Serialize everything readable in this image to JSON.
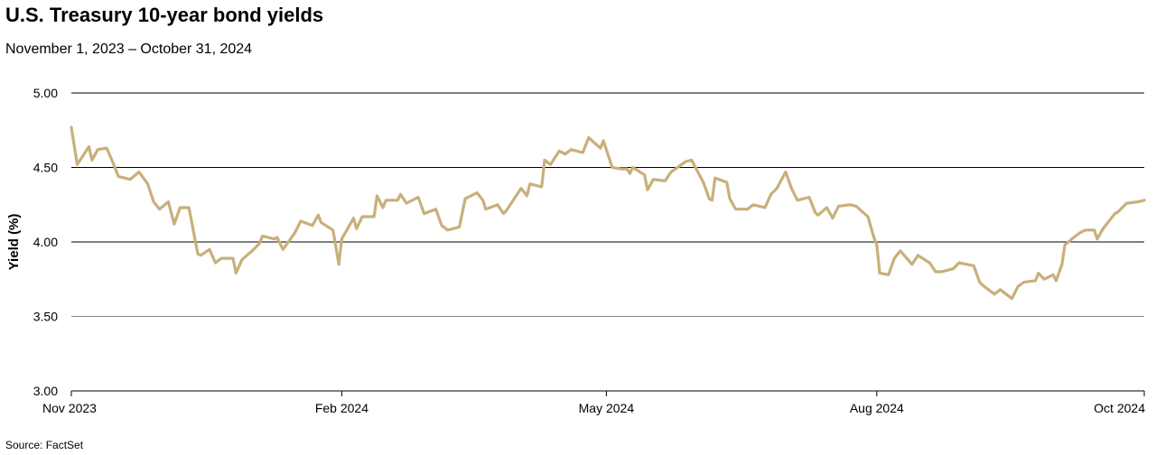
{
  "title": "U.S. Treasury 10-year bond yields",
  "subtitle": "November 1, 2023 – October 31, 2024",
  "source": "Source: FactSet",
  "colors": {
    "line": "#c8b07a",
    "grid": "#000000",
    "grid_light": "#8a8a8a"
  },
  "chart_data": {
    "type": "line",
    "ylabel": "Yield (%)",
    "xlabel": "",
    "ylim": [
      3.0,
      5.0
    ],
    "yticks": [
      "5.00",
      "4.50",
      "4.00",
      "3.50",
      "3.00"
    ],
    "xticks": [
      {
        "label": "Nov 2023",
        "date": "2023-11-01"
      },
      {
        "label": "Feb 2024",
        "date": "2024-02-01"
      },
      {
        "label": "May 2024",
        "date": "2024-05-01"
      },
      {
        "label": "Aug 2024",
        "date": "2024-08-01"
      },
      {
        "label": "Oct 2024",
        "date": "2024-10-31"
      }
    ],
    "xlim": [
      "2023-11-01",
      "2024-10-31"
    ],
    "series": [
      {
        "values": [
          [
            "2023-11-01",
            4.77
          ],
          [
            "2023-11-03",
            4.52
          ],
          [
            "2023-11-07",
            4.64
          ],
          [
            "2023-11-08",
            4.55
          ],
          [
            "2023-11-10",
            4.62
          ],
          [
            "2023-11-13",
            4.63
          ],
          [
            "2023-11-15",
            4.54
          ],
          [
            "2023-11-17",
            4.44
          ],
          [
            "2023-11-21",
            4.42
          ],
          [
            "2023-11-24",
            4.47
          ],
          [
            "2023-11-27",
            4.39
          ],
          [
            "2023-11-29",
            4.27
          ],
          [
            "2023-12-01",
            4.22
          ],
          [
            "2023-12-04",
            4.27
          ],
          [
            "2023-12-06",
            4.12
          ],
          [
            "2023-12-08",
            4.23
          ],
          [
            "2023-12-11",
            4.23
          ],
          [
            "2023-12-14",
            3.92
          ],
          [
            "2023-12-15",
            3.91
          ],
          [
            "2023-12-18",
            3.95
          ],
          [
            "2023-12-20",
            3.86
          ],
          [
            "2023-12-22",
            3.89
          ],
          [
            "2023-12-26",
            3.89
          ],
          [
            "2023-12-27",
            3.79
          ],
          [
            "2023-12-29",
            3.88
          ],
          [
            "2024-01-02",
            3.95
          ],
          [
            "2024-01-04",
            3.99
          ],
          [
            "2024-01-05",
            4.04
          ],
          [
            "2024-01-09",
            4.02
          ],
          [
            "2024-01-10",
            4.03
          ],
          [
            "2024-01-12",
            3.95
          ],
          [
            "2024-01-16",
            4.06
          ],
          [
            "2024-01-18",
            4.14
          ],
          [
            "2024-01-22",
            4.11
          ],
          [
            "2024-01-24",
            4.18
          ],
          [
            "2024-01-25",
            4.13
          ],
          [
            "2024-01-29",
            4.08
          ],
          [
            "2024-01-31",
            3.85
          ],
          [
            "2024-02-01",
            4.02
          ],
          [
            "2024-02-05",
            4.16
          ],
          [
            "2024-02-06",
            4.09
          ],
          [
            "2024-02-08",
            4.17
          ],
          [
            "2024-02-12",
            4.17
          ],
          [
            "2024-02-13",
            4.31
          ],
          [
            "2024-02-15",
            4.23
          ],
          [
            "2024-02-16",
            4.28
          ],
          [
            "2024-02-20",
            4.28
          ],
          [
            "2024-02-21",
            4.32
          ],
          [
            "2024-02-23",
            4.26
          ],
          [
            "2024-02-27",
            4.3
          ],
          [
            "2024-02-29",
            4.19
          ],
          [
            "2024-03-04",
            4.22
          ],
          [
            "2024-03-06",
            4.11
          ],
          [
            "2024-03-08",
            4.08
          ],
          [
            "2024-03-12",
            4.1
          ],
          [
            "2024-03-14",
            4.29
          ],
          [
            "2024-03-18",
            4.33
          ],
          [
            "2024-03-20",
            4.28
          ],
          [
            "2024-03-21",
            4.22
          ],
          [
            "2024-03-25",
            4.25
          ],
          [
            "2024-03-27",
            4.19
          ],
          [
            "2024-03-28",
            4.21
          ],
          [
            "2024-04-02",
            4.36
          ],
          [
            "2024-04-04",
            4.31
          ],
          [
            "2024-04-05",
            4.39
          ],
          [
            "2024-04-09",
            4.37
          ],
          [
            "2024-04-10",
            4.55
          ],
          [
            "2024-04-12",
            4.52
          ],
          [
            "2024-04-15",
            4.61
          ],
          [
            "2024-04-17",
            4.59
          ],
          [
            "2024-04-19",
            4.62
          ],
          [
            "2024-04-23",
            4.6
          ],
          [
            "2024-04-25",
            4.7
          ],
          [
            "2024-04-29",
            4.63
          ],
          [
            "2024-04-30",
            4.68
          ],
          [
            "2024-05-03",
            4.5
          ],
          [
            "2024-05-06",
            4.49
          ],
          [
            "2024-05-08",
            4.49
          ],
          [
            "2024-05-09",
            4.46
          ],
          [
            "2024-05-10",
            4.5
          ],
          [
            "2024-05-14",
            4.45
          ],
          [
            "2024-05-15",
            4.35
          ],
          [
            "2024-05-17",
            4.42
          ],
          [
            "2024-05-21",
            4.41
          ],
          [
            "2024-05-23",
            4.47
          ],
          [
            "2024-05-28",
            4.54
          ],
          [
            "2024-05-30",
            4.55
          ],
          [
            "2024-06-03",
            4.4
          ],
          [
            "2024-06-05",
            4.29
          ],
          [
            "2024-06-06",
            4.28
          ],
          [
            "2024-06-07",
            4.43
          ],
          [
            "2024-06-11",
            4.4
          ],
          [
            "2024-06-12",
            4.29
          ],
          [
            "2024-06-14",
            4.22
          ],
          [
            "2024-06-18",
            4.22
          ],
          [
            "2024-06-20",
            4.25
          ],
          [
            "2024-06-24",
            4.23
          ],
          [
            "2024-06-26",
            4.32
          ],
          [
            "2024-06-28",
            4.36
          ],
          [
            "2024-07-01",
            4.47
          ],
          [
            "2024-07-03",
            4.36
          ],
          [
            "2024-07-05",
            4.28
          ],
          [
            "2024-07-09",
            4.3
          ],
          [
            "2024-07-11",
            4.2
          ],
          [
            "2024-07-12",
            4.18
          ],
          [
            "2024-07-15",
            4.23
          ],
          [
            "2024-07-17",
            4.16
          ],
          [
            "2024-07-19",
            4.24
          ],
          [
            "2024-07-23",
            4.25
          ],
          [
            "2024-07-25",
            4.24
          ],
          [
            "2024-07-29",
            4.17
          ],
          [
            "2024-07-31",
            4.03
          ],
          [
            "2024-08-01",
            3.98
          ],
          [
            "2024-08-02",
            3.79
          ],
          [
            "2024-08-05",
            3.78
          ],
          [
            "2024-08-07",
            3.89
          ],
          [
            "2024-08-09",
            3.94
          ],
          [
            "2024-08-13",
            3.85
          ],
          [
            "2024-08-15",
            3.91
          ],
          [
            "2024-08-19",
            3.86
          ],
          [
            "2024-08-21",
            3.8
          ],
          [
            "2024-08-23",
            3.8
          ],
          [
            "2024-08-27",
            3.82
          ],
          [
            "2024-08-29",
            3.86
          ],
          [
            "2024-09-03",
            3.84
          ],
          [
            "2024-09-05",
            3.73
          ],
          [
            "2024-09-06",
            3.71
          ],
          [
            "2024-09-10",
            3.65
          ],
          [
            "2024-09-12",
            3.68
          ],
          [
            "2024-09-16",
            3.62
          ],
          [
            "2024-09-18",
            3.7
          ],
          [
            "2024-09-20",
            3.73
          ],
          [
            "2024-09-24",
            3.74
          ],
          [
            "2024-09-25",
            3.79
          ],
          [
            "2024-09-27",
            3.75
          ],
          [
            "2024-09-30",
            3.78
          ],
          [
            "2024-10-01",
            3.74
          ],
          [
            "2024-10-03",
            3.85
          ],
          [
            "2024-10-04",
            3.98
          ],
          [
            "2024-10-07",
            4.03
          ],
          [
            "2024-10-09",
            4.06
          ],
          [
            "2024-10-11",
            4.08
          ],
          [
            "2024-10-14",
            4.08
          ],
          [
            "2024-10-15",
            4.02
          ],
          [
            "2024-10-17",
            4.09
          ],
          [
            "2024-10-21",
            4.19
          ],
          [
            "2024-10-22",
            4.2
          ],
          [
            "2024-10-24",
            4.24
          ],
          [
            "2024-10-25",
            4.26
          ],
          [
            "2024-10-29",
            4.27
          ],
          [
            "2024-10-31",
            4.28
          ]
        ]
      }
    ]
  }
}
